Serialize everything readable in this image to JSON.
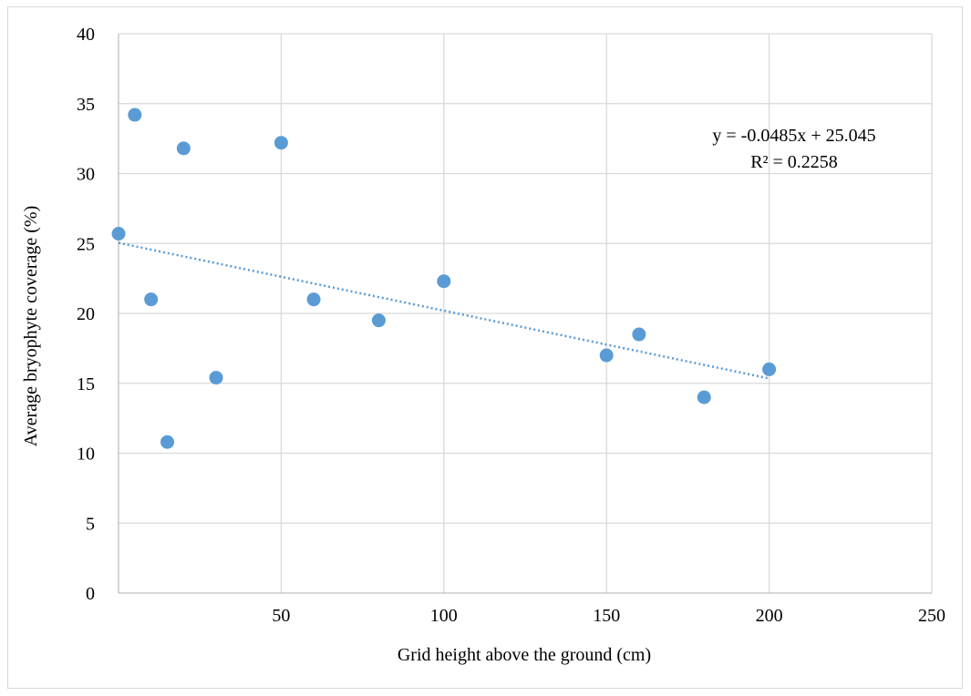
{
  "chart_data": {
    "type": "scatter",
    "title": "",
    "xlabel": "Grid height above the ground (cm)",
    "ylabel": "Average bryophyte coverage (%)",
    "xlim": [
      0,
      250
    ],
    "ylim": [
      0,
      40
    ],
    "x_ticks": [
      50,
      100,
      150,
      200,
      250
    ],
    "y_ticks": [
      0,
      5,
      10,
      15,
      20,
      25,
      30,
      35,
      40
    ],
    "grid": true,
    "marker_color": "#5b9bd5",
    "series": [
      {
        "points": [
          {
            "x": 0,
            "y": 25.7
          },
          {
            "x": 5,
            "y": 34.2
          },
          {
            "x": 10,
            "y": 21.0
          },
          {
            "x": 15,
            "y": 10.8
          },
          {
            "x": 20,
            "y": 31.8
          },
          {
            "x": 30,
            "y": 15.4
          },
          {
            "x": 50,
            "y": 32.2
          },
          {
            "x": 60,
            "y": 21.0
          },
          {
            "x": 80,
            "y": 19.5
          },
          {
            "x": 100,
            "y": 22.3
          },
          {
            "x": 150,
            "y": 17.0
          },
          {
            "x": 160,
            "y": 18.5
          },
          {
            "x": 180,
            "y": 14.0
          },
          {
            "x": 200,
            "y": 16.0
          }
        ]
      }
    ],
    "trendline": {
      "type": "linear",
      "slope": -0.0485,
      "intercept": 25.045,
      "x_range": [
        0,
        200
      ],
      "style": "dotted",
      "equation_label": "y = -0.0485x + 25.045",
      "r2_label": "R² = 0.2258"
    }
  }
}
